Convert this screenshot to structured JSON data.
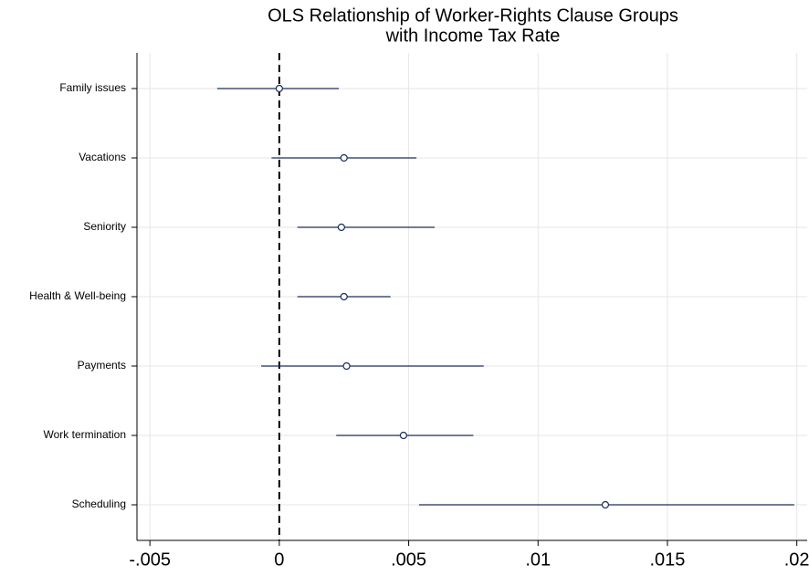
{
  "chart_data": {
    "type": "coefplot",
    "title": [
      "OLS Relationship of Worker-Rights Clause Groups",
      "with Income Tax Rate"
    ],
    "categories": [
      "Family issues",
      "Vacations",
      "Seniority",
      "Health & Well-being",
      "Payments",
      "Work termination",
      "Scheduling"
    ],
    "estimate": [
      0.0,
      0.0025,
      0.0024,
      0.0025,
      0.0026,
      0.0048,
      0.0126
    ],
    "ci_low": [
      -0.0024,
      -0.0003,
      0.0007,
      0.0007,
      -0.0007,
      0.0022,
      0.0054
    ],
    "ci_high": [
      0.0023,
      0.0053,
      0.006,
      0.0043,
      0.0079,
      0.0075,
      0.0199
    ],
    "color": "#1a2e5a",
    "reference_line": 0,
    "xlim": [
      -0.0055,
      0.0204
    ],
    "xticks": [
      {
        "value": -0.005,
        "label": "-.005"
      },
      0,
      {
        "value": 0.005,
        "label": ".005"
      },
      {
        "value": 0.01,
        "label": ".01"
      },
      {
        "value": 0.015,
        "label": ".015"
      },
      {
        "value": 0.02,
        "label": ".02"
      }
    ],
    "grid": true
  }
}
